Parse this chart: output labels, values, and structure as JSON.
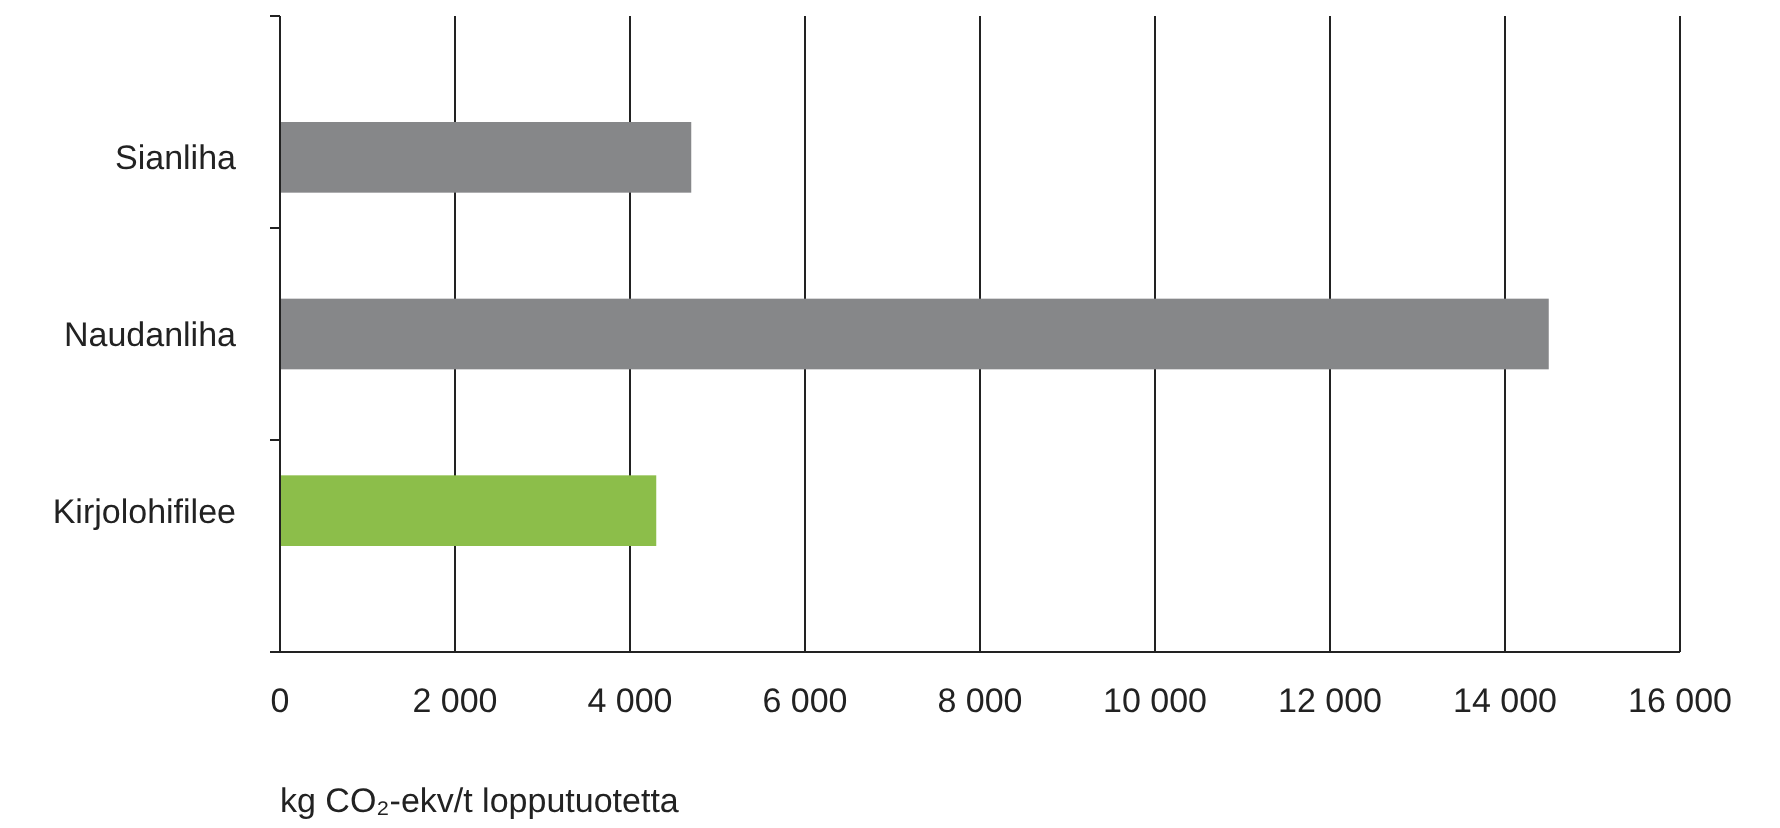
{
  "chart_data": {
    "type": "bar",
    "orientation": "horizontal",
    "categories": [
      "Sianliha",
      "Naudanliha",
      "Kirjolohifilee"
    ],
    "values": [
      4700,
      14500,
      4300
    ],
    "colors": [
      "#868789",
      "#868789",
      "#8cbe4a"
    ],
    "xlim": [
      0,
      16000
    ],
    "xticks": [
      0,
      {
        "value": 2000,
        "label": "2 000"
      },
      {
        "value": 4000,
        "label": "4 000"
      },
      {
        "value": 6000,
        "label": "6 000"
      },
      {
        "value": 8000,
        "label": "8 000"
      },
      {
        "value": 10000,
        "label": "10 000"
      },
      {
        "value": 12000,
        "label": "12 000"
      },
      {
        "value": 14000,
        "label": "14 000"
      },
      {
        "value": 16000,
        "label": "16 000"
      }
    ],
    "xlabel": "kg CO₂-ekv/t lopputuotetta",
    "grid": "x"
  }
}
